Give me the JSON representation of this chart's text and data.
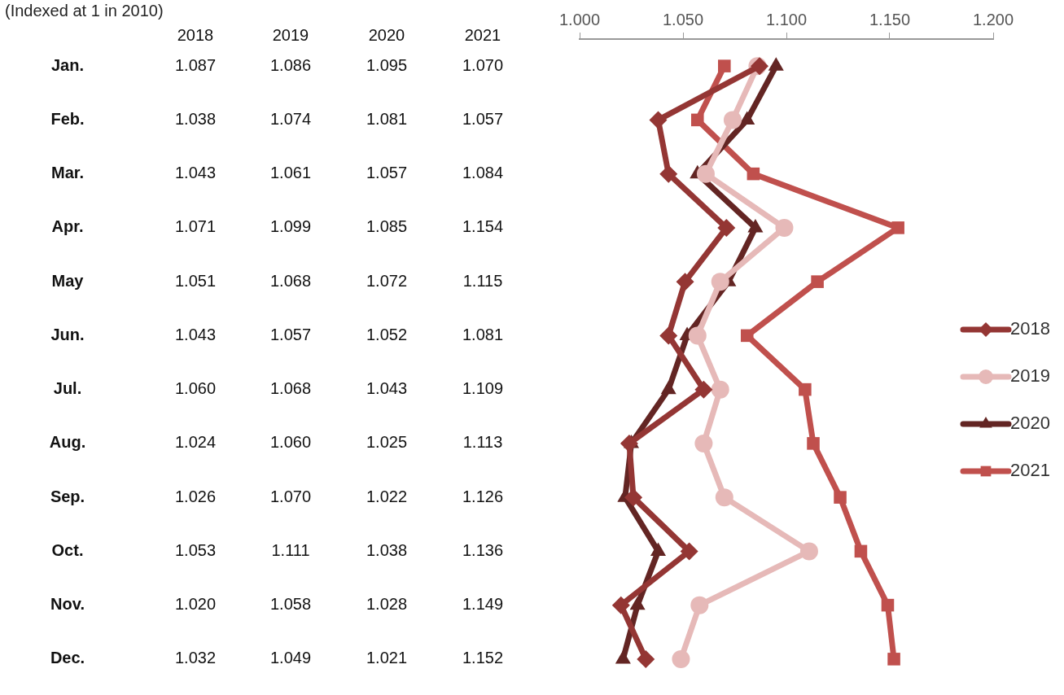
{
  "chart_data": {
    "type": "line",
    "title": "(Indexed at 1 in 2010)",
    "orientation": "horizontal",
    "legend": "right",
    "grid": false,
    "categories": [
      "Jan.",
      "Feb.",
      "Mar.",
      "Apr.",
      "May",
      "Jun.",
      "Jul.",
      "Aug.",
      "Sep.",
      "Oct.",
      "Nov.",
      "Dec."
    ],
    "x2lim": [
      1.0,
      1.2
    ],
    "x2ticks": [
      {
        "value": 1.0,
        "label": "1.000"
      },
      {
        "value": 1.05,
        "label": "1.050"
      },
      {
        "value": 1.1,
        "label": "1.100"
      },
      {
        "value": 1.15,
        "label": "1.150"
      },
      {
        "value": 1.2,
        "label": "1.200"
      }
    ],
    "series": [
      {
        "name": "2018",
        "color": "#943634",
        "marker": "diamond",
        "values": [
          1.087,
          1.038,
          1.043,
          1.071,
          1.051,
          1.043,
          1.06,
          1.024,
          1.026,
          1.053,
          1.02,
          1.032
        ],
        "value_labels": [
          "1.087",
          "1.038",
          "1.043",
          "1.071",
          "1.051",
          "1.043",
          "1.060",
          "1.024",
          "1.026",
          "1.053",
          "1.020",
          "1.032"
        ]
      },
      {
        "name": "2019",
        "color": "#e6b9b8",
        "marker": "circle",
        "values": [
          1.086,
          1.074,
          1.061,
          1.099,
          1.068,
          1.057,
          1.068,
          1.06,
          1.07,
          1.111,
          1.058,
          1.049
        ],
        "value_labels": [
          "1.086",
          "1.074",
          "1.061",
          "1.099",
          "1.068",
          "1.057",
          "1.068",
          "1.060",
          "1.070",
          "1.111",
          "1.058",
          "1.049"
        ]
      },
      {
        "name": "2020",
        "color": "#632523",
        "marker": "triangle",
        "values": [
          1.095,
          1.081,
          1.057,
          1.085,
          1.072,
          1.052,
          1.043,
          1.025,
          1.022,
          1.038,
          1.028,
          1.021
        ],
        "value_labels": [
          "1.095",
          "1.081",
          "1.057",
          "1.085",
          "1.072",
          "1.052",
          "1.043",
          "1.025",
          "1.022",
          "1.038",
          "1.028",
          "1.021"
        ]
      },
      {
        "name": "2021",
        "color": "#c0504d",
        "marker": "square",
        "values": [
          1.07,
          1.057,
          1.084,
          1.154,
          1.115,
          1.081,
          1.109,
          1.113,
          1.126,
          1.136,
          1.149,
          1.152
        ],
        "value_labels": [
          "1.070",
          "1.057",
          "1.084",
          "1.154",
          "1.115",
          "1.081",
          "1.109",
          "1.113",
          "1.126",
          "1.136",
          "1.149",
          "1.152"
        ]
      }
    ]
  }
}
